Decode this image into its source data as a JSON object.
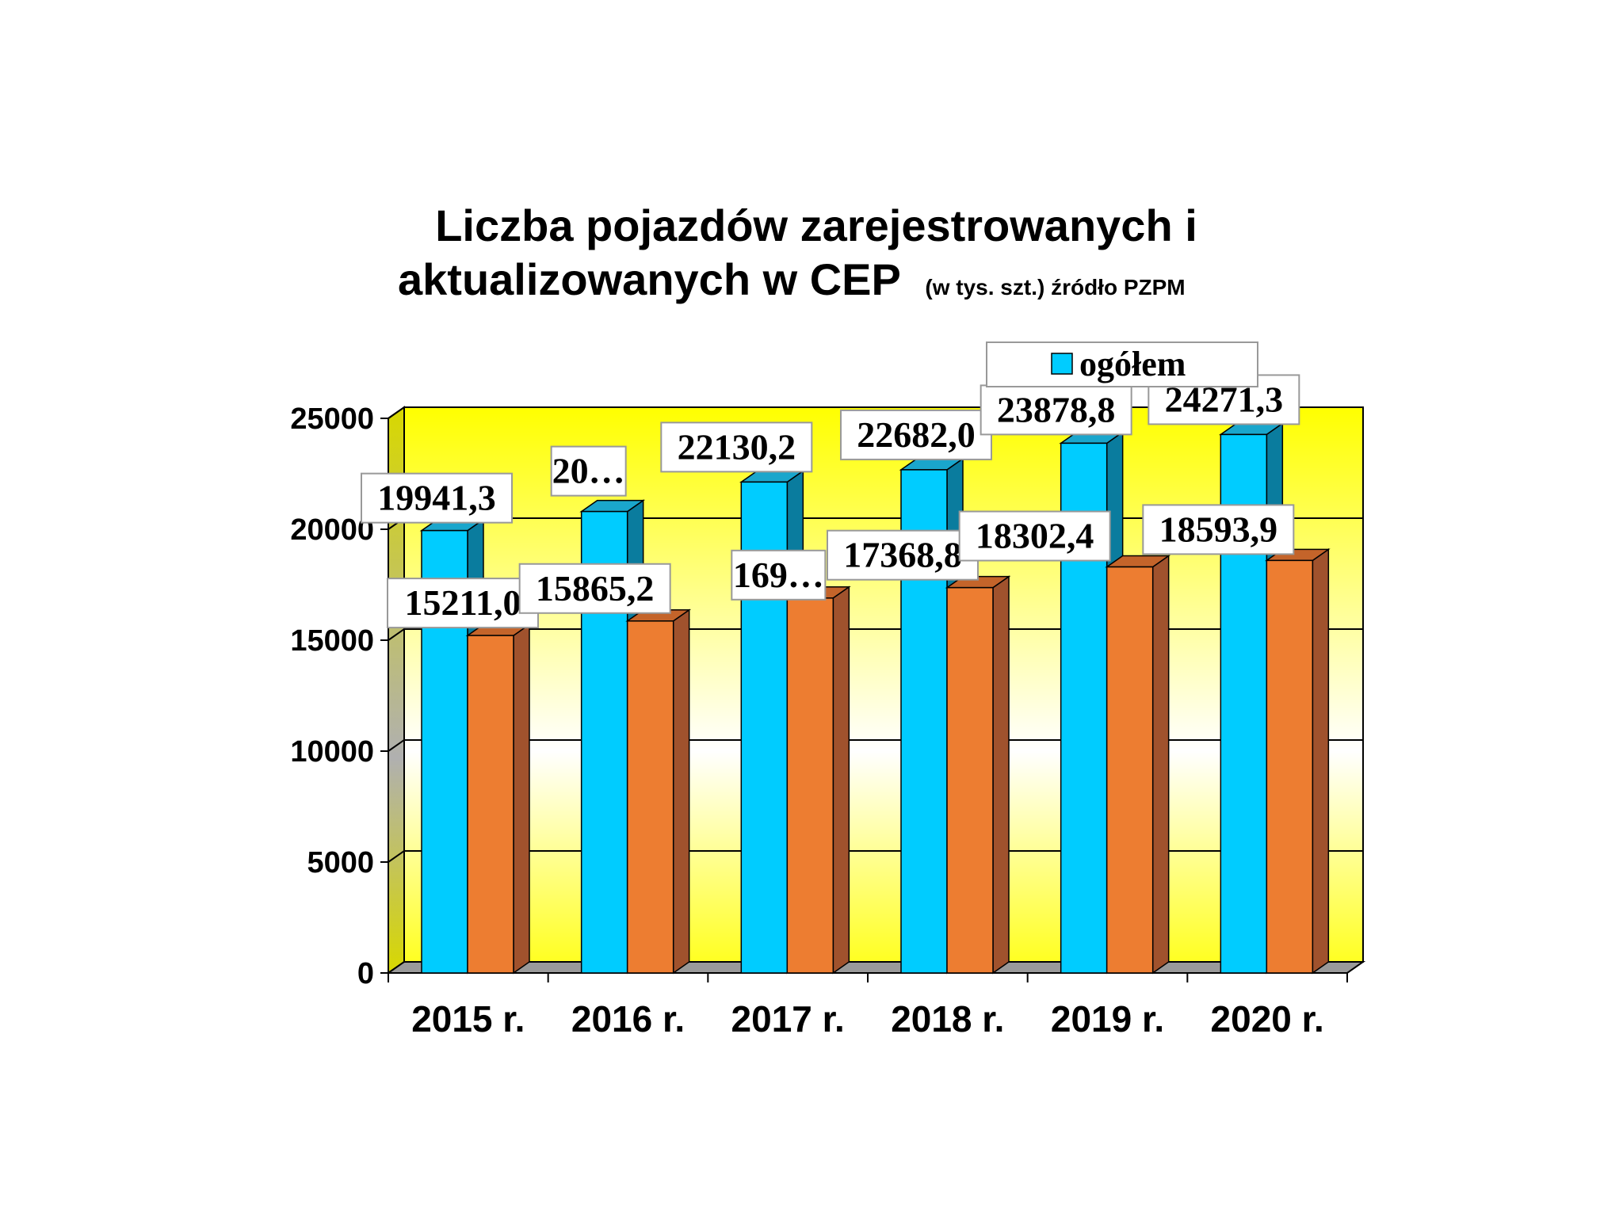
{
  "title_line1": "Liczba pojazdów zarejestrowanych i",
  "title_line2": "aktualizowanych w CEP",
  "title_note": "(w  tys. szt.) źródło PZPM",
  "legend_label": "ogółem",
  "colors": {
    "series1": "#00CCFF",
    "series1_side": "#0A7C9E",
    "series2": "#ED7D31",
    "series2_side": "#A0522D",
    "wall_top": "#FFFF00",
    "wall_bottom": "#FFFFFF"
  },
  "chart_data": {
    "type": "bar",
    "categories": [
      "2015 r.",
      "2016 r.",
      "2017 r.",
      "2018 r.",
      "2019 r.",
      "2020 r."
    ],
    "series": [
      {
        "name": "ogółem",
        "values": [
          19941.3,
          20800,
          22130.2,
          22682.0,
          23878.8,
          24271.3
        ],
        "labels": [
          "19941,3",
          "20…",
          "22130,2",
          "22682,0",
          "23878,8",
          "24271,3"
        ]
      },
      {
        "values": [
          15211.0,
          15865.2,
          16900,
          17368.8,
          18302.4,
          18593.9
        ],
        "labels": [
          "15211,0",
          "15865,2",
          "169…",
          "17368,8",
          "18302,4",
          "18593,9"
        ]
      }
    ],
    "yticks": [
      "0",
      "5000",
      "10000",
      "15000",
      "20000",
      "25000"
    ],
    "ylim": [
      0,
      25000
    ],
    "grid": true,
    "legend": "top-right"
  }
}
